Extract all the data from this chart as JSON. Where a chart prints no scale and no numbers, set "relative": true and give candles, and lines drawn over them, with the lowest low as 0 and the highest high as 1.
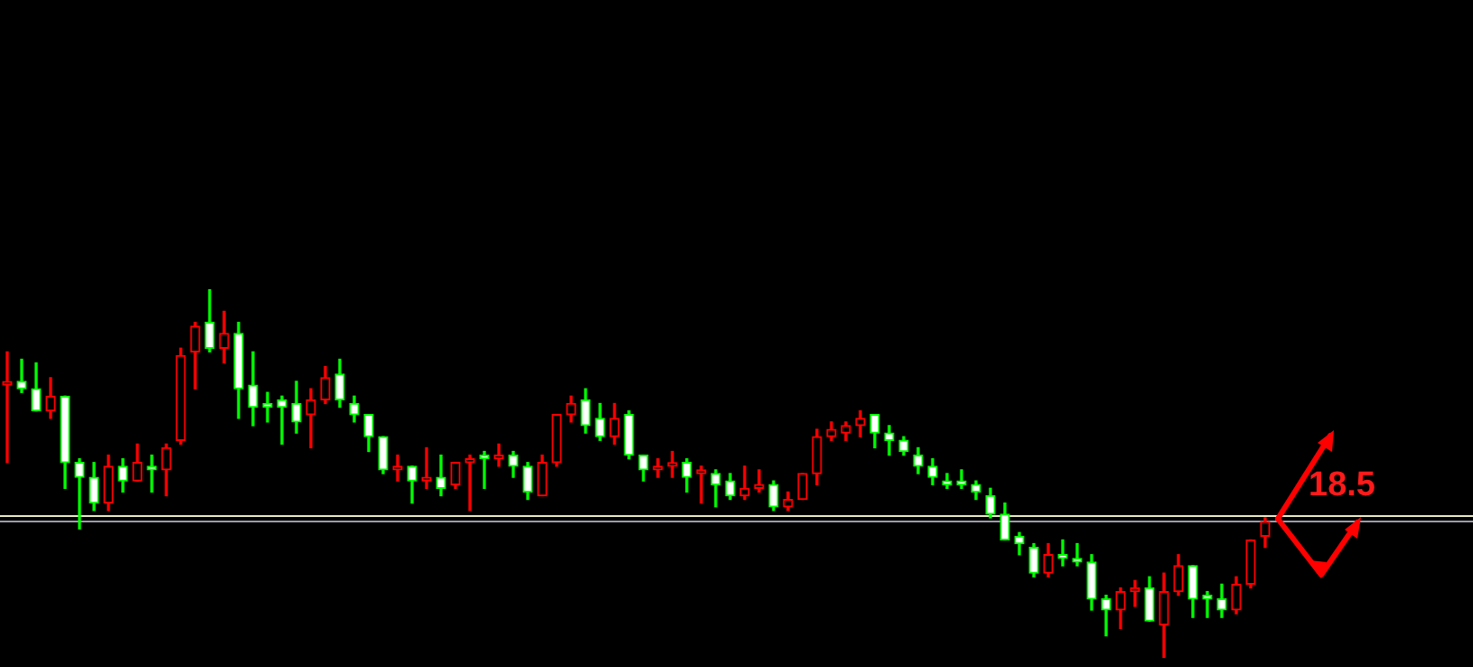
{
  "chart_data": {
    "type": "candlestick",
    "relative": true,
    "categories": [
      null,
      null,
      null,
      null,
      null,
      null,
      null,
      null,
      null,
      null,
      null,
      null,
      null,
      null,
      null,
      null,
      null,
      null,
      null,
      null,
      null,
      null,
      null,
      null,
      null,
      null,
      null,
      null,
      null,
      null,
      null,
      null,
      null,
      null,
      null,
      null,
      null,
      null,
      null,
      null,
      null,
      null,
      null,
      null,
      null,
      null,
      null,
      null,
      null,
      null,
      null,
      null,
      null,
      null,
      null,
      null,
      null,
      null,
      null,
      null,
      null,
      null,
      null,
      null,
      null,
      null,
      null,
      null,
      null,
      null,
      null,
      null,
      null,
      null,
      null,
      null,
      null,
      null,
      null,
      null,
      null,
      null,
      null,
      null,
      null,
      null,
      null,
      null
    ],
    "ohlc": [
      [
        0.74,
        0.83,
        0.53,
        0.74
      ],
      [
        0.75,
        0.81,
        0.72,
        0.73
      ],
      [
        0.73,
        0.8,
        0.67,
        0.67
      ],
      [
        0.67,
        0.76,
        0.65,
        0.71
      ],
      [
        0.71,
        0.71,
        0.46,
        0.53
      ],
      [
        0.53,
        0.54,
        0.35,
        0.49
      ],
      [
        0.49,
        0.53,
        0.4,
        0.42
      ],
      [
        0.42,
        0.55,
        0.4,
        0.52
      ],
      [
        0.52,
        0.54,
        0.45,
        0.48
      ],
      [
        0.48,
        0.58,
        0.48,
        0.53
      ],
      [
        0.52,
        0.55,
        0.45,
        0.51
      ],
      [
        0.51,
        0.58,
        0.44,
        0.57
      ],
      [
        0.59,
        0.84,
        0.58,
        0.82
      ],
      [
        0.83,
        0.91,
        0.73,
        0.9
      ],
      [
        0.91,
        1,
        0.83,
        0.84
      ],
      [
        0.84,
        0.94,
        0.8,
        0.88
      ],
      [
        0.88,
        0.91,
        0.65,
        0.73
      ],
      [
        0.74,
        0.83,
        0.63,
        0.68
      ],
      [
        0.69,
        0.72,
        0.64,
        0.68
      ],
      [
        0.7,
        0.71,
        0.58,
        0.68
      ],
      [
        0.69,
        0.75,
        0.61,
        0.64
      ],
      [
        0.66,
        0.73,
        0.57,
        0.7
      ],
      [
        0.7,
        0.79,
        0.69,
        0.76
      ],
      [
        0.77,
        0.81,
        0.68,
        0.7
      ],
      [
        0.69,
        0.71,
        0.64,
        0.66
      ],
      [
        0.66,
        0.66,
        0.56,
        0.6
      ],
      [
        0.6,
        0.6,
        0.5,
        0.51
      ],
      [
        0.51,
        0.55,
        0.48,
        0.52
      ],
      [
        0.52,
        0.52,
        0.42,
        0.48
      ],
      [
        0.48,
        0.57,
        0.46,
        0.49
      ],
      [
        0.49,
        0.55,
        0.44,
        0.46
      ],
      [
        0.47,
        0.53,
        0.46,
        0.53
      ],
      [
        0.53,
        0.55,
        0.4,
        0.54
      ],
      [
        0.55,
        0.56,
        0.46,
        0.54
      ],
      [
        0.54,
        0.58,
        0.52,
        0.55
      ],
      [
        0.55,
        0.56,
        0.49,
        0.52
      ],
      [
        0.52,
        0.53,
        0.43,
        0.45
      ],
      [
        0.44,
        0.55,
        0.44,
        0.53
      ],
      [
        0.53,
        0.66,
        0.52,
        0.66
      ],
      [
        0.66,
        0.71,
        0.64,
        0.69
      ],
      [
        0.7,
        0.73,
        0.61,
        0.63
      ],
      [
        0.65,
        0.69,
        0.59,
        0.6
      ],
      [
        0.6,
        0.69,
        0.58,
        0.65
      ],
      [
        0.66,
        0.67,
        0.54,
        0.55
      ],
      [
        0.55,
        0.55,
        0.48,
        0.51
      ],
      [
        0.51,
        0.54,
        0.49,
        0.52
      ],
      [
        0.52,
        0.56,
        0.49,
        0.52
      ],
      [
        0.53,
        0.54,
        0.45,
        0.49
      ],
      [
        0.5,
        0.52,
        0.42,
        0.5
      ],
      [
        0.5,
        0.51,
        0.41,
        0.47
      ],
      [
        0.48,
        0.5,
        0.43,
        0.44
      ],
      [
        0.44,
        0.52,
        0.43,
        0.46
      ],
      [
        0.46,
        0.51,
        0.45,
        0.47
      ],
      [
        0.47,
        0.48,
        0.4,
        0.41
      ],
      [
        0.41,
        0.45,
        0.4,
        0.43
      ],
      [
        0.43,
        0.5,
        0.43,
        0.5
      ],
      [
        0.5,
        0.62,
        0.47,
        0.6
      ],
      [
        0.6,
        0.64,
        0.59,
        0.62
      ],
      [
        0.61,
        0.64,
        0.59,
        0.63
      ],
      [
        0.63,
        0.67,
        0.6,
        0.65
      ],
      [
        0.66,
        0.66,
        0.57,
        0.61
      ],
      [
        0.61,
        0.63,
        0.55,
        0.59
      ],
      [
        0.59,
        0.6,
        0.55,
        0.56
      ],
      [
        0.55,
        0.57,
        0.5,
        0.52
      ],
      [
        0.52,
        0.54,
        0.47,
        0.49
      ],
      [
        0.48,
        0.5,
        0.46,
        0.47
      ],
      [
        0.48,
        0.51,
        0.46,
        0.47
      ],
      [
        0.47,
        0.48,
        0.43,
        0.45
      ],
      [
        0.44,
        0.46,
        0.38,
        0.39
      ],
      [
        0.39,
        0.42,
        0.32,
        0.32
      ],
      [
        0.33,
        0.34,
        0.28,
        0.31
      ],
      [
        0.3,
        0.31,
        0.22,
        0.23
      ],
      [
        0.23,
        0.31,
        0.22,
        0.28
      ],
      [
        0.28,
        0.32,
        0.25,
        0.27
      ],
      [
        0.27,
        0.31,
        0.25,
        0.26
      ],
      [
        0.26,
        0.28,
        0.13,
        0.16
      ],
      [
        0.16,
        0.17,
        0.06,
        0.13
      ],
      [
        0.13,
        0.19,
        0.08,
        0.18
      ],
      [
        0.18,
        0.21,
        0.14,
        0.19
      ],
      [
        0.19,
        0.22,
        0.1,
        0.1
      ],
      [
        0.09,
        0.23,
        0,
        0.18
      ],
      [
        0.18,
        0.28,
        0.17,
        0.25
      ],
      [
        0.25,
        0.25,
        0.11,
        0.16
      ],
      [
        0.17,
        0.18,
        0.11,
        0.16
      ],
      [
        0.16,
        0.2,
        0.11,
        0.13
      ],
      [
        0.13,
        0.22,
        0.12,
        0.2
      ],
      [
        0.2,
        0.32,
        0.19,
        0.32
      ],
      [
        0.33,
        0.38,
        0.3,
        0.37
      ]
    ],
    "colors": [
      "#ff0000",
      "#00ff00",
      "#00ff00",
      "#ff0000",
      "#00ff00",
      "#00ff00",
      "#00ff00",
      "#ff0000",
      "#00ff00",
      "#ff0000",
      "#00ff00",
      "#ff0000",
      "#ff0000",
      "#ff0000",
      "#00ff00",
      "#ff0000",
      "#00ff00",
      "#00ff00",
      "#00ff00",
      "#00ff00",
      "#00ff00",
      "#ff0000",
      "#ff0000",
      "#00ff00",
      "#00ff00",
      "#00ff00",
      "#00ff00",
      "#ff0000",
      "#00ff00",
      "#ff0000",
      "#00ff00",
      "#ff0000",
      "#ff0000",
      "#00ff00",
      "#ff0000",
      "#00ff00",
      "#00ff00",
      "#ff0000",
      "#ff0000",
      "#ff0000",
      "#00ff00",
      "#00ff00",
      "#ff0000",
      "#00ff00",
      "#00ff00",
      "#ff0000",
      "#ff0000",
      "#00ff00",
      "#ff0000",
      "#00ff00",
      "#00ff00",
      "#ff0000",
      "#ff0000",
      "#00ff00",
      "#ff0000",
      "#ff0000",
      "#ff0000",
      "#ff0000",
      "#ff0000",
      "#ff0000",
      "#00ff00",
      "#00ff00",
      "#00ff00",
      "#00ff00",
      "#00ff00",
      "#00ff00",
      "#00ff00",
      "#00ff00",
      "#00ff00",
      "#00ff00",
      "#00ff00",
      "#00ff00",
      "#ff0000",
      "#00ff00",
      "#00ff00",
      "#00ff00",
      "#00ff00",
      "#ff0000",
      "#ff0000",
      "#00ff00",
      "#ff0000",
      "#ff0000",
      "#00ff00",
      "#00ff00",
      "#00ff00",
      "#ff0000",
      "#ff0000",
      "#ff0000"
    ],
    "ref_lines": [
      {
        "axis": "y",
        "value": 0.385,
        "color": "#e8e8c0"
      },
      {
        "axis": "y",
        "value": 0.372,
        "color": "#9a9aaa"
      }
    ],
    "annotations": [
      "18.5"
    ]
  }
}
